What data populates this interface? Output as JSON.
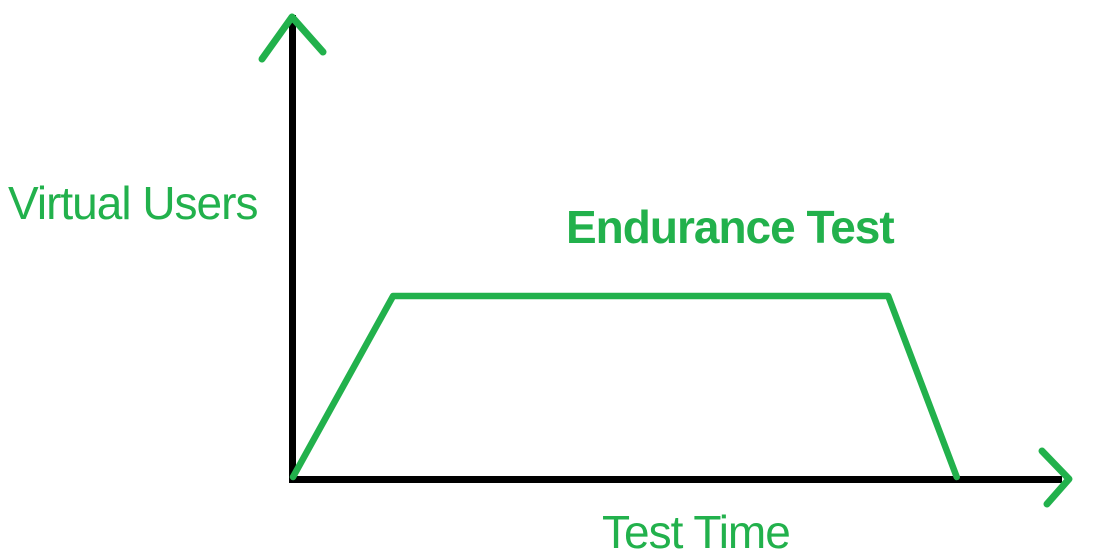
{
  "labels": {
    "title": "Endurance Test",
    "y_axis": "Virtual Users",
    "x_axis": "Test Time"
  },
  "colors": {
    "green": "#22B14C",
    "axis": "#000000",
    "background": "#FFFFFF"
  },
  "icons": {
    "y_axis_arrowhead": "up-chevron-arrowhead",
    "x_axis_arrowhead": "right-chevron-arrowhead"
  },
  "chart_data": {
    "type": "line",
    "title": "Endurance Test",
    "xlabel": "Test Time",
    "ylabel": "Virtual Users",
    "x_tick_labels": [],
    "y_tick_labels": [],
    "grid": false,
    "legend": "none",
    "axis_range": {
      "x": [
        0,
        1
      ],
      "y": [
        0,
        2.5
      ]
    },
    "series": [
      {
        "name": "virtual-users-load-profile",
        "shape": "trapezoid (ramp-up, sustained plateau, ramp-down)",
        "x": [
          0,
          0.13,
          0.773,
          0.862
        ],
        "y": [
          0,
          1,
          1,
          0
        ],
        "color": "#22B14C"
      }
    ]
  }
}
